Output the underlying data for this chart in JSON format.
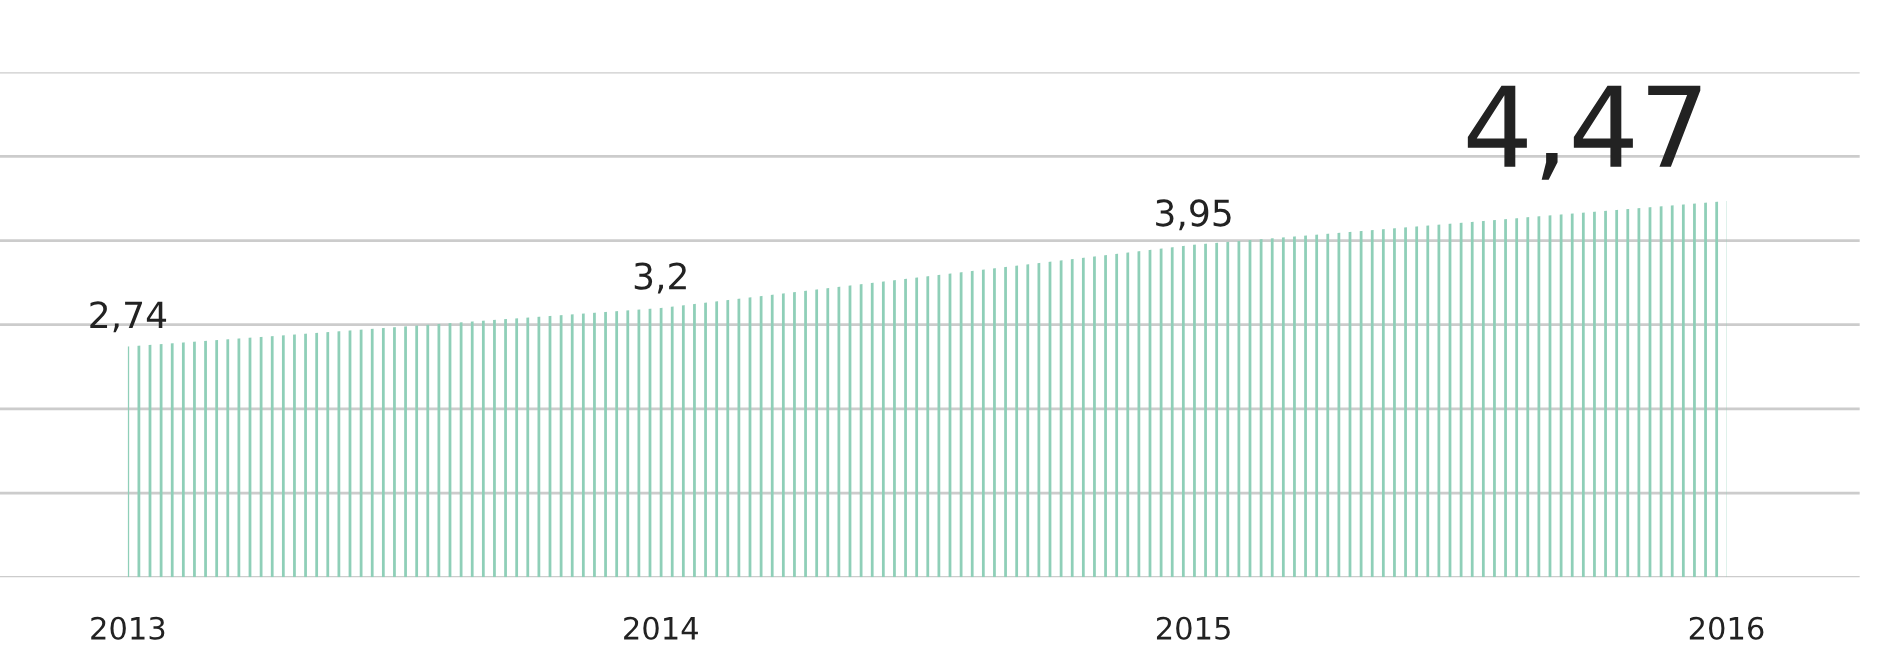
{
  "chart_data": {
    "type": "area",
    "x": [
      2013,
      2014,
      2015,
      2016
    ],
    "values": [
      2.74,
      3.2,
      3.95,
      4.47
    ],
    "value_labels": [
      "2,74",
      "3,2",
      "3,95",
      "4,47"
    ],
    "color": "#8fcfb8",
    "xlim": [
      2012.76,
      2016.25
    ],
    "xticks": [
      2013,
      2014,
      2015,
      2016
    ],
    "ylim": [
      0,
      6
    ],
    "yticks": [
      {
        "value": 0,
        "label": null
      },
      {
        "value": 1,
        "label": null
      },
      {
        "value": 2,
        "label": null
      },
      {
        "value": 3,
        "label": null
      },
      {
        "value": 4,
        "label": null
      },
      {
        "value": 5,
        "label": null
      },
      {
        "value": 6,
        "label": null
      }
    ],
    "grid": "y"
  }
}
